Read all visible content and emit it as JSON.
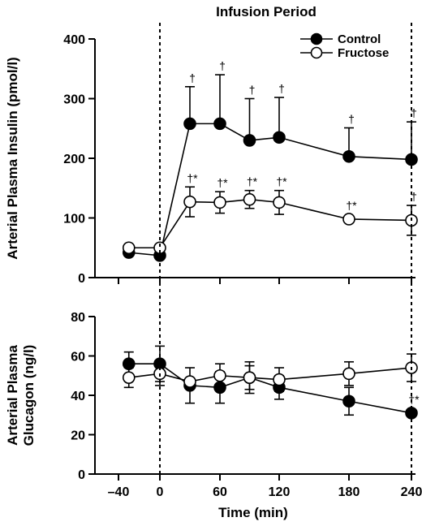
{
  "title": "Infusion Period",
  "xlabel": "Time (min)",
  "colors": {
    "control": "#000000",
    "fructose": "#ffffff"
  },
  "chart_data": [
    {
      "type": "line",
      "ylabel": "Arterial Plasma Insulin (pmol/l)",
      "ylim": [
        0,
        400
      ],
      "yticks": [
        "0",
        "100",
        "200",
        "300",
        "400"
      ],
      "xlim": [
        -60,
        240
      ],
      "xticks": [
        "-40",
        "0",
        "60",
        "120",
        "180",
        "240"
      ],
      "legend": {
        "position": "top-right",
        "entries": [
          "Control",
          "Fructose"
        ]
      },
      "series": [
        {
          "name": "Control",
          "marker": "filled-circle",
          "x": [
            -30,
            0,
            30,
            60,
            90,
            120,
            180,
            240
          ],
          "y": [
            42,
            37,
            258,
            258,
            230,
            235,
            203,
            198
          ],
          "err": [
            0,
            0,
            62,
            82,
            70,
            67,
            48,
            63
          ],
          "ann": [
            "",
            "",
            "†",
            "†",
            "†",
            "†",
            "†",
            "†"
          ]
        },
        {
          "name": "Fructose",
          "marker": "open-circle",
          "x": [
            -30,
            0,
            30,
            60,
            90,
            120,
            180,
            240
          ],
          "y": [
            50,
            50,
            127,
            126,
            131,
            126,
            98,
            96
          ],
          "err": [
            0,
            0,
            25,
            18,
            15,
            20,
            0,
            25
          ],
          "ann": [
            "",
            "",
            "†*",
            "†*",
            "†*",
            "†*",
            "†*",
            "†"
          ]
        }
      ]
    },
    {
      "type": "line",
      "ylabel": "Arterial Plasma Glucagon (ng/l)",
      "ylim": [
        0,
        80
      ],
      "yticks": [
        "0",
        "20",
        "40",
        "60",
        "80"
      ],
      "xlim": [
        -60,
        240
      ],
      "xticks": [
        "-40",
        "0",
        "60",
        "120",
        "180",
        "240"
      ],
      "series": [
        {
          "name": "Control",
          "marker": "filled-circle",
          "x": [
            -30,
            0,
            30,
            60,
            90,
            120,
            180,
            240
          ],
          "y": [
            56,
            56,
            45,
            44,
            49,
            44,
            37,
            31
          ],
          "err": [
            6,
            9,
            9,
            8,
            8,
            6,
            7,
            0
          ],
          "ann": [
            "",
            "",
            "",
            "",
            "",
            "",
            "",
            "†*"
          ]
        },
        {
          "name": "Fructose",
          "marker": "open-circle",
          "x": [
            -30,
            0,
            30,
            60,
            90,
            120,
            180,
            240
          ],
          "y": [
            49,
            51,
            47,
            50,
            49,
            48,
            51,
            54
          ],
          "err": [
            5,
            6,
            0,
            6,
            6,
            6,
            6,
            7
          ],
          "ann": [
            "",
            "",
            "",
            "",
            "",
            "",
            "",
            ""
          ]
        }
      ]
    }
  ]
}
